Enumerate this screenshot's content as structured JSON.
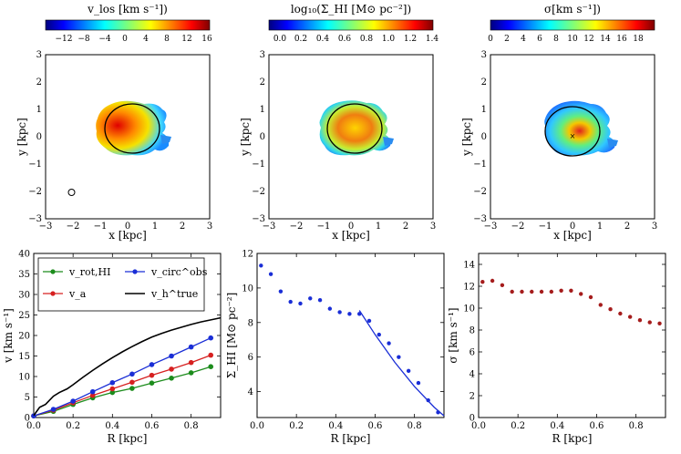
{
  "figure": {
    "colorbars": [
      {
        "label": "v_los [km s⁻¹])",
        "ticks": [
          "−12",
          "−8",
          "−4",
          "0",
          "4",
          "8",
          "12",
          "16"
        ],
        "range": [
          -16,
          16
        ],
        "colormap": "jet"
      },
      {
        "label": "log₁₀(Σ_HI [M⊙ pc⁻²])",
        "ticks": [
          "0.0",
          "0.2",
          "0.4",
          "0.6",
          "0.8",
          "1.0",
          "1.2",
          "1.4"
        ],
        "range": [
          -0.1,
          1.4
        ],
        "colormap": "jet"
      },
      {
        "label": "σ[km s⁻¹])",
        "ticks": [
          "0",
          "2",
          "4",
          "6",
          "8",
          "10",
          "12",
          "14",
          "16",
          "18"
        ],
        "range": [
          0,
          20
        ],
        "colormap": "jet"
      }
    ],
    "map_panels": [
      {
        "xlabel": "x [kpc]",
        "ylabel": "y [kpc]",
        "xlim": [
          -3,
          3
        ],
        "ylim": [
          -3,
          3
        ],
        "xticks": [
          "−3",
          "−2",
          "−1",
          "0",
          "1",
          "2",
          "3"
        ],
        "yticks": [
          "−3",
          "−2",
          "−1",
          "0",
          "1",
          "2",
          "3"
        ],
        "ellipse": {
          "center": [
            0.2,
            0.3
          ],
          "semi_axes": [
            1.0,
            0.9
          ]
        },
        "beam_marker_center": [
          -2.05,
          -1.98
        ],
        "center_marker": false
      },
      {
        "xlabel": "x [kpc]",
        "ylabel": "y [kpc]",
        "xlim": [
          -3,
          3
        ],
        "ylim": [
          -3,
          3
        ],
        "xticks": [
          "−3",
          "−2",
          "−1",
          "0",
          "1",
          "2",
          "3"
        ],
        "yticks": [
          "−3",
          "−2",
          "−1",
          "0",
          "1",
          "2",
          "3"
        ],
        "ellipse": {
          "center": [
            0.2,
            0.3
          ],
          "semi_axes": [
            1.0,
            0.9
          ]
        },
        "beam_marker_center": null,
        "center_marker": false
      },
      {
        "xlabel": "x [kpc]",
        "ylabel": "y [kpc]",
        "xlim": [
          -3,
          3
        ],
        "ylim": [
          -3,
          3
        ],
        "xticks": [
          "−3",
          "−2",
          "−1",
          "0",
          "1",
          "2",
          "3"
        ],
        "yticks": [
          "−3",
          "−2",
          "−1",
          "0",
          "1",
          "2",
          "3"
        ],
        "ellipse": {
          "center": [
            0.0,
            0.2
          ],
          "semi_axes": [
            1.0,
            0.9
          ]
        },
        "beam_marker_center": null,
        "center_marker": true
      }
    ]
  },
  "chart_data": [
    {
      "type": "line",
      "title": "",
      "xlabel": "R [kpc]",
      "ylabel": "v [km s⁻¹]",
      "xlim": [
        0,
        0.95
      ],
      "ylim": [
        0,
        40
      ],
      "xticks": [
        0.0,
        0.2,
        0.4,
        0.6,
        0.8
      ],
      "xtick_labels": [
        "0.0",
        "0.2",
        "0.4",
        "0.6",
        "0.8"
      ],
      "yticks": [
        0,
        5,
        10,
        15,
        20,
        25,
        30,
        35,
        40
      ],
      "ytick_labels": [
        "0",
        "5",
        "10",
        "15",
        "20",
        "25",
        "30",
        "35",
        "40"
      ],
      "legend": [
        "v_rot,HI",
        "v_a",
        "v_circ^obs",
        "v_h^true"
      ],
      "series": [
        {
          "name": "v_rot,HI",
          "color": "#1c8c1c",
          "marker": true,
          "x": [
            0.0,
            0.1,
            0.2,
            0.3,
            0.4,
            0.5,
            0.6,
            0.7,
            0.8,
            0.9
          ],
          "y": [
            0.4,
            1.5,
            3.2,
            4.8,
            6.1,
            7.1,
            8.4,
            9.6,
            10.9,
            12.4
          ]
        },
        {
          "name": "v_a",
          "color": "#d62020",
          "marker": true,
          "x": [
            0.0,
            0.1,
            0.2,
            0.3,
            0.4,
            0.5,
            0.6,
            0.7,
            0.8,
            0.9
          ],
          "y": [
            0.4,
            1.8,
            3.6,
            5.4,
            7.0,
            8.6,
            10.3,
            11.8,
            13.4,
            15.2
          ]
        },
        {
          "name": "v_circ^obs",
          "color": "#1a2ed6",
          "marker": true,
          "x": [
            0.0,
            0.1,
            0.2,
            0.3,
            0.4,
            0.5,
            0.6,
            0.7,
            0.8,
            0.9
          ],
          "y": [
            0.4,
            2.0,
            4.0,
            6.3,
            8.5,
            10.6,
            12.9,
            15.0,
            17.2,
            19.4
          ]
        },
        {
          "name": "v_h^true",
          "color": "#000000",
          "marker": false,
          "x": [
            0.0,
            0.03,
            0.06,
            0.1,
            0.13,
            0.17,
            0.2,
            0.25,
            0.3,
            0.35,
            0.4,
            0.45,
            0.5,
            0.55,
            0.6,
            0.65,
            0.7,
            0.75,
            0.8,
            0.85,
            0.9,
            0.95
          ],
          "y": [
            0.5,
            2.5,
            3.2,
            5.2,
            6.1,
            7.0,
            8.0,
            9.8,
            11.5,
            13.1,
            14.6,
            16.0,
            17.3,
            18.5,
            19.6,
            20.5,
            21.3,
            22.0,
            22.7,
            23.3,
            23.8,
            24.3
          ]
        }
      ]
    },
    {
      "type": "scatter",
      "title": "",
      "xlabel": "R [kpc]",
      "ylabel": "Σ_HI [M⊙ pc⁻²]",
      "xlim": [
        0,
        0.95
      ],
      "ylim": [
        2.5,
        12
      ],
      "xticks": [
        0.0,
        0.2,
        0.4,
        0.6,
        0.8
      ],
      "xtick_labels": [
        "0.0",
        "0.2",
        "0.4",
        "0.6",
        "0.8"
      ],
      "yticks": [
        4,
        6,
        8,
        10,
        12
      ],
      "ytick_labels": [
        "4",
        "6",
        "8",
        "10",
        "12"
      ],
      "series": [
        {
          "name": "Σ_HI data",
          "color": "#1a2ed6",
          "kind": "points",
          "x": [
            0.02,
            0.07,
            0.12,
            0.17,
            0.22,
            0.27,
            0.32,
            0.37,
            0.42,
            0.47,
            0.52,
            0.57,
            0.62,
            0.67,
            0.72,
            0.77,
            0.82,
            0.87,
            0.92
          ],
          "y": [
            11.3,
            10.8,
            9.8,
            9.2,
            9.1,
            9.4,
            9.3,
            8.8,
            8.6,
            8.5,
            8.5,
            8.1,
            7.3,
            6.8,
            6.0,
            5.2,
            4.5,
            3.5,
            2.8
          ]
        },
        {
          "name": "fit",
          "color": "#1a2ed6",
          "kind": "line",
          "x": [
            0.52,
            0.6,
            0.7,
            0.8,
            0.9,
            0.95
          ],
          "y": [
            8.7,
            7.3,
            5.7,
            4.3,
            3.1,
            2.6
          ]
        }
      ]
    },
    {
      "type": "scatter",
      "title": "",
      "xlabel": "R [kpc]",
      "ylabel": "σ [km s⁻¹]",
      "xlim": [
        0,
        0.95
      ],
      "ylim": [
        0,
        15
      ],
      "xticks": [
        0.0,
        0.2,
        0.4,
        0.6,
        0.8
      ],
      "xtick_labels": [
        "0.0",
        "0.2",
        "0.4",
        "0.6",
        "0.8"
      ],
      "yticks": [
        0,
        2,
        4,
        6,
        8,
        10,
        12,
        14
      ],
      "ytick_labels": [
        "0",
        "2",
        "4",
        "6",
        "8",
        "10",
        "12",
        "14"
      ],
      "series": [
        {
          "name": "σ",
          "color": "#a51c1c",
          "kind": "points",
          "x": [
            0.02,
            0.07,
            0.12,
            0.17,
            0.22,
            0.27,
            0.32,
            0.37,
            0.42,
            0.47,
            0.52,
            0.57,
            0.62,
            0.67,
            0.72,
            0.77,
            0.82,
            0.87,
            0.92
          ],
          "y": [
            12.4,
            12.5,
            12.1,
            11.5,
            11.5,
            11.5,
            11.5,
            11.5,
            11.6,
            11.6,
            11.3,
            11.0,
            10.3,
            9.9,
            9.5,
            9.2,
            8.9,
            8.7,
            8.6
          ]
        }
      ]
    }
  ]
}
